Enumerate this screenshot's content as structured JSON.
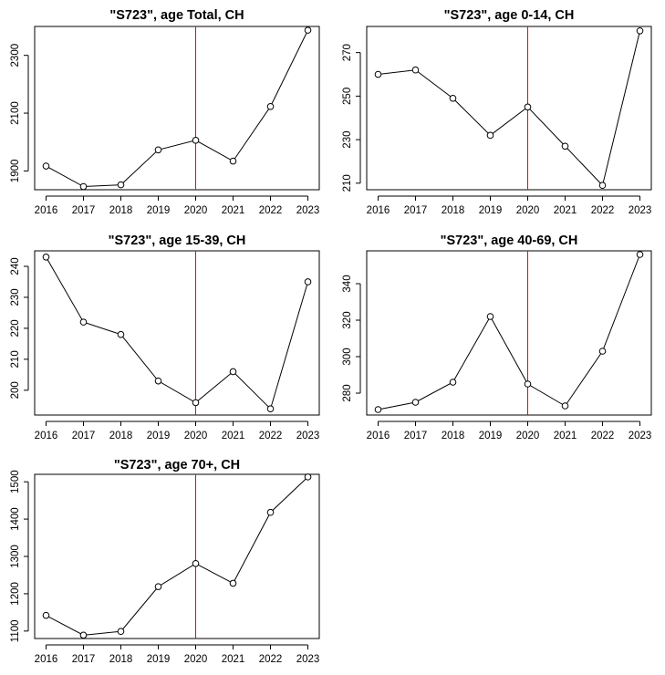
{
  "chart_data": [
    {
      "type": "line",
      "title": "\"S723\", age Total, CH",
      "x": [
        "2016",
        "2017",
        "2018",
        "2019",
        "2020",
        "2021",
        "2022",
        "2023"
      ],
      "values": [
        1917,
        1846,
        1852,
        1973,
        2006,
        1934,
        2123,
        2387
      ],
      "yticks": [
        "1900",
        "2100",
        "2300"
      ],
      "ylim": [
        1835,
        2400
      ],
      "vline_x": "2020",
      "vline_color": "#ff0000",
      "marker": "open-circle",
      "xlabel": "",
      "ylabel": ""
    },
    {
      "type": "line",
      "title": "\"S723\", age 0-14, CH",
      "x": [
        "2016",
        "2017",
        "2018",
        "2019",
        "2020",
        "2021",
        "2022",
        "2023"
      ],
      "values": [
        260,
        262,
        249,
        232,
        245,
        227,
        209,
        280
      ],
      "yticks": [
        "210",
        "230",
        "250",
        "270"
      ],
      "ylim": [
        207,
        282
      ],
      "vline_x": "2020",
      "vline_color": "#ff0000",
      "marker": "open-circle",
      "xlabel": "",
      "ylabel": ""
    },
    {
      "type": "line",
      "title": "\"S723\", age 15-39, CH",
      "x": [
        "2016",
        "2017",
        "2018",
        "2019",
        "2020",
        "2021",
        "2022",
        "2023"
      ],
      "values": [
        243,
        222,
        218,
        203,
        196,
        206,
        194,
        235
      ],
      "yticks": [
        "200",
        "210",
        "220",
        "230",
        "240"
      ],
      "ylim": [
        192,
        245
      ],
      "vline_x": "2020",
      "vline_color": "#ff0000",
      "marker": "open-circle",
      "xlabel": "",
      "ylabel": ""
    },
    {
      "type": "line",
      "title": "\"S723\", age 40-69, CH",
      "x": [
        "2016",
        "2017",
        "2018",
        "2019",
        "2020",
        "2021",
        "2022",
        "2023"
      ],
      "values": [
        271,
        275,
        286,
        322,
        285,
        273,
        303,
        356
      ],
      "yticks": [
        "280",
        "300",
        "320",
        "340"
      ],
      "ylim": [
        268,
        358
      ],
      "vline_x": "2020",
      "vline_color": "#ff0000",
      "marker": "open-circle",
      "xlabel": "",
      "ylabel": ""
    },
    {
      "type": "line",
      "title": "\"S723\", age 70+, CH",
      "x": [
        "2016",
        "2017",
        "2018",
        "2019",
        "2020",
        "2021",
        "2022",
        "2023"
      ],
      "values": [
        1142,
        1089,
        1099,
        1219,
        1281,
        1228,
        1418,
        1513
      ],
      "yticks": [
        "1100",
        "1200",
        "1300",
        "1400",
        "1500"
      ],
      "ylim": [
        1080,
        1520
      ],
      "vline_x": "2020",
      "vline_color": "#ff0000",
      "marker": "open-circle",
      "xlabel": "",
      "ylabel": ""
    }
  ]
}
